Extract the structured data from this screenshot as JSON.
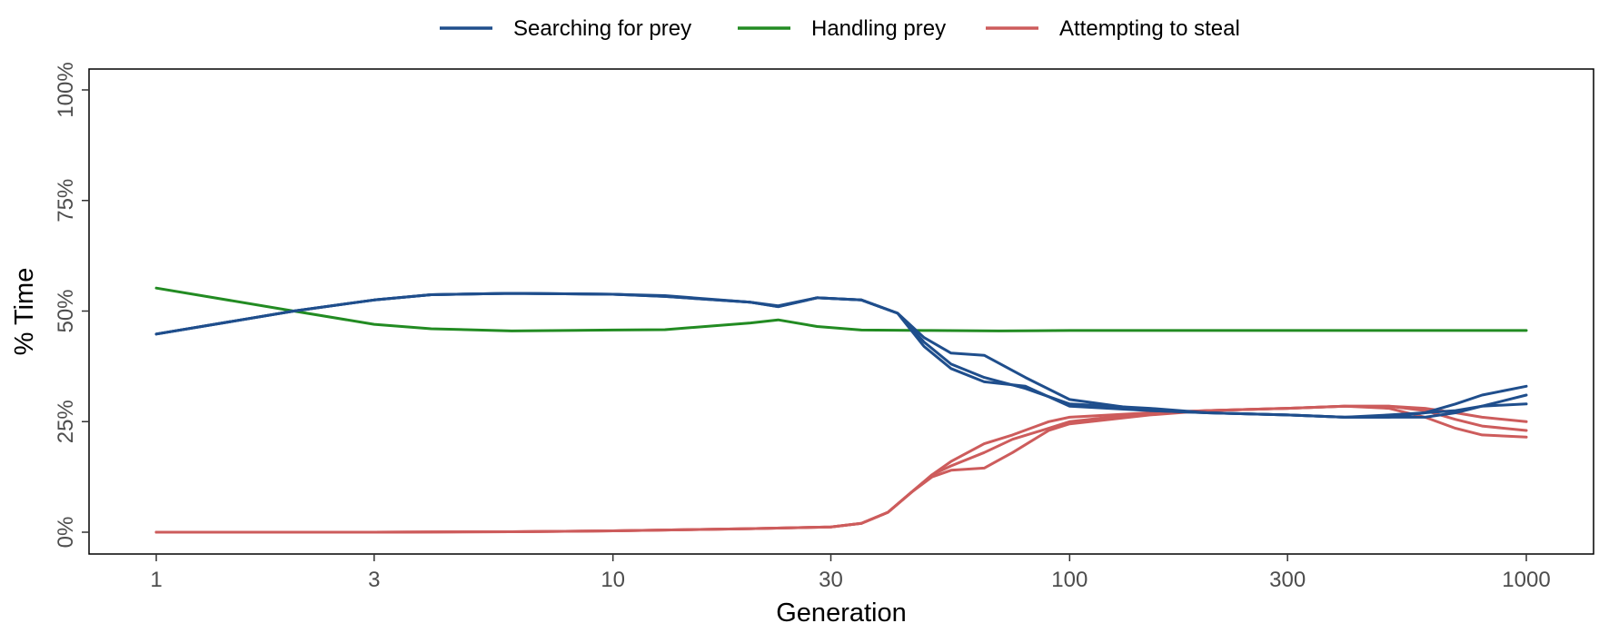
{
  "chart_data": {
    "type": "line",
    "xlabel": "Generation",
    "ylabel": "% Time",
    "x_scale": "log",
    "xlim": [
      1,
      1000
    ],
    "ylim": [
      0,
      100
    ],
    "x_ticks": [
      1,
      3,
      10,
      30,
      100,
      300,
      1000
    ],
    "x_tick_labels": [
      "1",
      "3",
      "10",
      "30",
      "100",
      "300",
      "1000"
    ],
    "y_ticks": [
      0,
      25,
      50,
      75,
      100
    ],
    "y_tick_labels": [
      "0%",
      "25%",
      "50%",
      "75%",
      "100%"
    ],
    "grid": false,
    "legend_position": "top",
    "colors": {
      "Searching for prey": "#1f4e8c",
      "Handling prey": "#228b22",
      "Attempting to steal": "#cd5c5c"
    },
    "series": [
      {
        "name": "Searching for prey",
        "group": "Searching for prey",
        "x": [
          1,
          2,
          3,
          4,
          6,
          10,
          13,
          20,
          23,
          28,
          35,
          42,
          48,
          55,
          65,
          80,
          100,
          150,
          200,
          300,
          400,
          500,
          600,
          700,
          800,
          1000
        ],
        "y": [
          44.8,
          50,
          52.5,
          53.7,
          54,
          53.8,
          53.3,
          52,
          51,
          53,
          52.5,
          49.5,
          44,
          40.5,
          40,
          35,
          30,
          27.5,
          27,
          26.5,
          26,
          26,
          27,
          29,
          31,
          33
        ]
      },
      {
        "name": "Searching for prey",
        "group": "Searching for prey",
        "x": [
          1,
          2,
          3,
          4,
          6,
          10,
          13,
          20,
          23,
          28,
          35,
          42,
          48,
          55,
          65,
          80,
          100,
          150,
          200,
          300,
          400,
          500,
          600,
          700,
          800,
          1000
        ],
        "y": [
          44.8,
          50,
          52.5,
          53.7,
          54,
          53.8,
          53.5,
          52,
          51.2,
          53,
          52.5,
          49.5,
          43,
          38,
          35,
          32.5,
          29,
          28,
          27,
          26.5,
          26,
          26.5,
          27,
          27.5,
          28.5,
          29
        ]
      },
      {
        "name": "Searching for prey",
        "group": "Searching for prey",
        "x": [
          1,
          2,
          3,
          4,
          6,
          10,
          13,
          20,
          23,
          28,
          35,
          42,
          48,
          55,
          65,
          80,
          100,
          150,
          200,
          300,
          400,
          500,
          600,
          700,
          800,
          1000
        ],
        "y": [
          44.8,
          50,
          52.5,
          53.7,
          54,
          53.8,
          53.3,
          52,
          51,
          53,
          52.5,
          49.5,
          42,
          37,
          34,
          33,
          28.5,
          27.5,
          27,
          26.5,
          26,
          26,
          26,
          27,
          28.5,
          31
        ]
      },
      {
        "name": "Handling prey",
        "group": "Handling prey",
        "x": [
          1,
          2,
          3,
          4,
          6,
          10,
          13,
          20,
          23,
          28,
          35,
          50,
          70,
          100,
          200,
          500,
          1000
        ],
        "y": [
          55.2,
          50,
          47,
          46,
          45.5,
          45.7,
          45.8,
          47.3,
          48,
          46.5,
          45.7,
          45.6,
          45.5,
          45.6,
          45.6,
          45.6,
          45.6
        ]
      },
      {
        "name": "Attempting to steal",
        "group": "Attempting to steal",
        "x": [
          1,
          3,
          6,
          10,
          20,
          30,
          35,
          40,
          45,
          50,
          55,
          65,
          75,
          90,
          100,
          150,
          200,
          300,
          400,
          500,
          600,
          700,
          800,
          1000
        ],
        "y": [
          0,
          0,
          0.1,
          0.3,
          0.8,
          1.2,
          2,
          4.5,
          9,
          13,
          16,
          20,
          22,
          25,
          26,
          27,
          27.5,
          28,
          28.5,
          28.5,
          28,
          27,
          26,
          25
        ]
      },
      {
        "name": "Attempting to steal",
        "group": "Attempting to steal",
        "x": [
          1,
          3,
          6,
          10,
          20,
          30,
          35,
          40,
          45,
          50,
          55,
          65,
          75,
          90,
          100,
          150,
          200,
          300,
          400,
          500,
          600,
          700,
          800,
          1000
        ],
        "y": [
          0,
          0,
          0.1,
          0.3,
          0.8,
          1.2,
          2,
          4.5,
          9,
          13,
          15,
          18,
          21,
          23.5,
          25,
          27,
          27.5,
          28,
          28.5,
          28.5,
          27.5,
          25.5,
          24,
          23
        ]
      },
      {
        "name": "Attempting to steal",
        "group": "Attempting to steal",
        "x": [
          1,
          3,
          6,
          10,
          20,
          30,
          35,
          40,
          45,
          50,
          55,
          65,
          75,
          90,
          100,
          150,
          200,
          300,
          400,
          500,
          600,
          700,
          800,
          1000
        ],
        "y": [
          0,
          0,
          0.1,
          0.3,
          0.8,
          1.2,
          2,
          4.5,
          9,
          12.5,
          14,
          14.5,
          18,
          23,
          24.5,
          26.5,
          27.5,
          28,
          28.5,
          28,
          26,
          23.5,
          22,
          21.5
        ]
      }
    ]
  }
}
